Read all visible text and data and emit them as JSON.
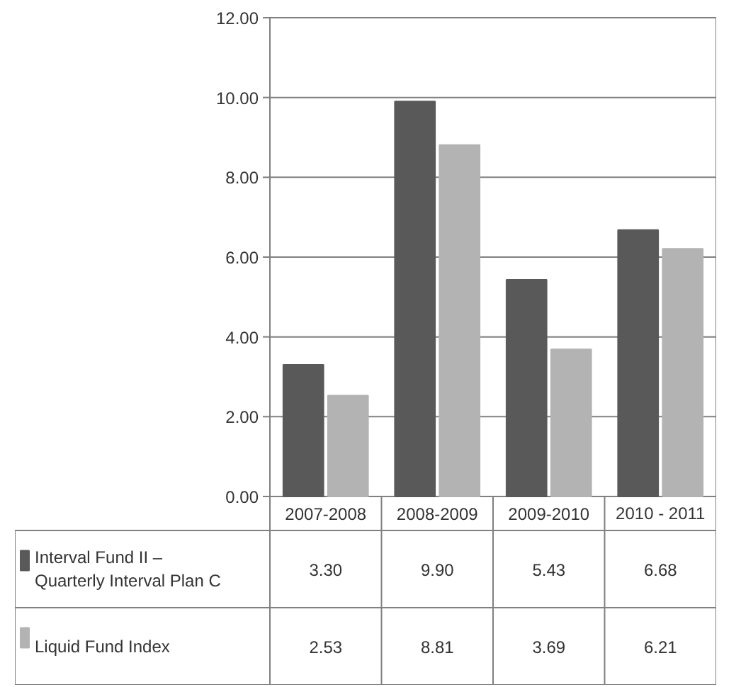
{
  "chart_data": {
    "type": "bar",
    "categories": [
      "2007-2008",
      "2008-2009",
      "2009-2010",
      "2010 - 2011"
    ],
    "series": [
      {
        "name": "Interval Fund II – Quarterly Interval Plan C",
        "color": "#595959",
        "values": [
          3.3,
          9.9,
          5.43,
          6.68
        ],
        "value_labels": [
          "3.30",
          "9.90",
          "5.43",
          "6.68"
        ]
      },
      {
        "name": "Liquid Fund Index",
        "color": "#b3b3b3",
        "values": [
          2.53,
          8.81,
          3.69,
          6.21
        ],
        "value_labels": [
          "2.53",
          "8.81",
          "3.69",
          "6.21"
        ]
      }
    ],
    "ylim": [
      0,
      12
    ],
    "yticks": [
      {
        "value": 0,
        "label": "0.00"
      },
      {
        "value": 2,
        "label": "2.00"
      },
      {
        "value": 4,
        "label": "4.00"
      },
      {
        "value": 6,
        "label": "6.00"
      },
      {
        "value": 8,
        "label": "8.00"
      },
      {
        "value": 10,
        "label": "10.00"
      },
      {
        "value": 12,
        "label": "12.00"
      }
    ],
    "grid": "y",
    "legend": "bottom left"
  }
}
